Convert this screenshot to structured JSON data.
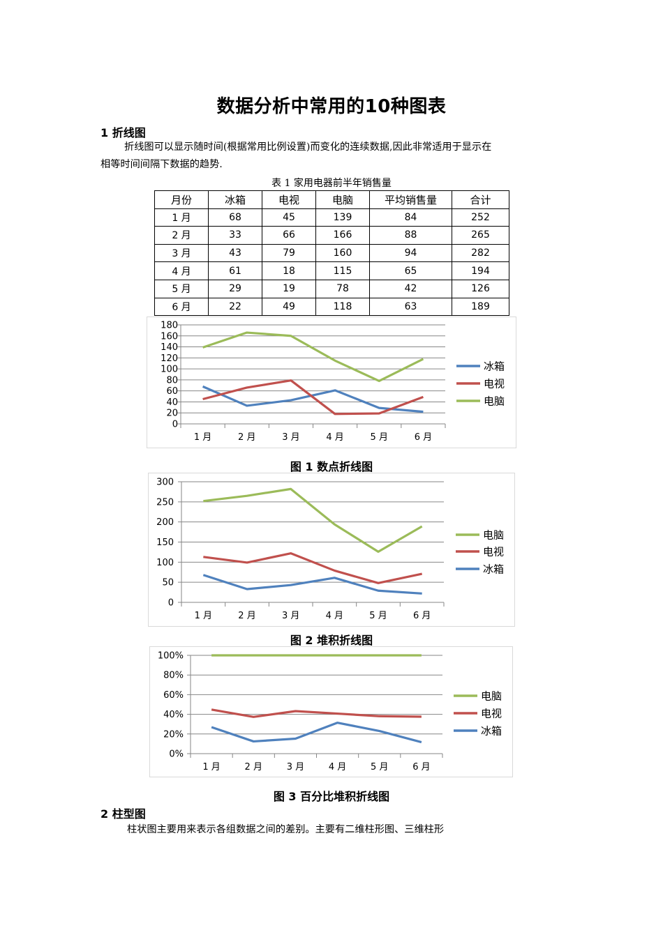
{
  "document": {
    "title": "数据分析中常用的10种图表",
    "section1": {
      "heading": "1 折线图",
      "paragraph_line1": "折线图可以显示随时间(根据常用比例设置)而变化的连续数据,因此非常适用于显示在",
      "paragraph_line2": "相等时间间隔下数据的趋势."
    },
    "table1": {
      "caption": "表 1 家用电器前半年销售量",
      "headers": [
        "月份",
        "冰箱",
        "电视",
        "电脑",
        "平均销售量",
        "合计"
      ],
      "rows": [
        [
          "1 月",
          "68",
          "45",
          "139",
          "84",
          "252"
        ],
        [
          "2 月",
          "33",
          "66",
          "166",
          "88",
          "265"
        ],
        [
          "3 月",
          "43",
          "79",
          "160",
          "94",
          "282"
        ],
        [
          "4 月",
          "61",
          "18",
          "115",
          "65",
          "194"
        ],
        [
          "5 月",
          "29",
          "19",
          "78",
          "42",
          "126"
        ],
        [
          "6 月",
          "22",
          "49",
          "118",
          "63",
          "189"
        ]
      ]
    },
    "figure1_caption": "图 1  数点折线图",
    "figure2_caption": "图 2 堆积折线图",
    "figure3_caption": "图 3 百分比堆积折线图",
    "section2": {
      "heading": "2 柱型图",
      "paragraph_line1": "柱状图主要用来表示各组数据之间的差别。主要有二维柱形图、三维柱形"
    }
  },
  "colors": {
    "fridge": "#4F81BD",
    "tv": "#C0504D",
    "computer": "#9BBB59",
    "gridline": "#868686",
    "frame": "#d9d9d9"
  },
  "chart_data": [
    {
      "type": "line",
      "title": "图 1 数点折线图",
      "categories": [
        "1月",
        "2月",
        "3月",
        "4月",
        "5月",
        "6月"
      ],
      "series": [
        {
          "name": "冰箱",
          "values": [
            68,
            33,
            43,
            61,
            29,
            22
          ],
          "color": "#4F81BD"
        },
        {
          "name": "电视",
          "values": [
            45,
            66,
            79,
            18,
            19,
            49
          ],
          "color": "#C0504D"
        },
        {
          "name": "电脑",
          "values": [
            139,
            166,
            160,
            115,
            78,
            118
          ],
          "color": "#9BBB59"
        }
      ],
      "legend": [
        "冰箱",
        "电视",
        "电脑"
      ],
      "legend_position": "right",
      "yticks": [
        "0",
        "20",
        "40",
        "60",
        "80",
        "100",
        "120",
        "140",
        "160",
        "180"
      ],
      "ylim": [
        0,
        180
      ],
      "grid": true,
      "xlabel": "",
      "ylabel": ""
    },
    {
      "type": "line",
      "stacked": true,
      "title": "图 2 堆积折线图",
      "categories": [
        "1月",
        "2月",
        "3月",
        "4月",
        "5月",
        "6月"
      ],
      "series": [
        {
          "name": "冰箱",
          "values": [
            68,
            33,
            43,
            61,
            29,
            22
          ],
          "color": "#4F81BD"
        },
        {
          "name": "电视",
          "values": [
            45,
            66,
            79,
            18,
            19,
            49
          ],
          "color": "#C0504D"
        },
        {
          "name": "电脑",
          "values": [
            139,
            166,
            160,
            115,
            78,
            118
          ],
          "color": "#9BBB59"
        }
      ],
      "plotted_cumulative": {
        "冰箱": [
          68,
          33,
          43,
          61,
          29,
          22
        ],
        "电视": [
          113,
          99,
          122,
          79,
          48,
          71
        ],
        "电脑": [
          252,
          265,
          282,
          194,
          126,
          189
        ]
      },
      "legend": [
        "电脑",
        "电视",
        "冰箱"
      ],
      "legend_position": "right",
      "yticks": [
        "0",
        "50",
        "100",
        "150",
        "200",
        "250",
        "300"
      ],
      "ylim": [
        0,
        300
      ],
      "grid": true,
      "xlabel": "",
      "ylabel": ""
    },
    {
      "type": "line",
      "stacked": "percent",
      "title": "图 3 百分比堆积折线图",
      "categories": [
        "1月",
        "2月",
        "3月",
        "4月",
        "5月",
        "6月"
      ],
      "series": [
        {
          "name": "冰箱",
          "values": [
            68,
            33,
            43,
            61,
            29,
            22
          ],
          "color": "#4F81BD"
        },
        {
          "name": "电视",
          "values": [
            45,
            66,
            79,
            18,
            19,
            49
          ],
          "color": "#C0504D"
        },
        {
          "name": "电脑",
          "values": [
            139,
            166,
            160,
            115,
            78,
            118
          ],
          "color": "#9BBB59"
        }
      ],
      "plotted_cumulative_percent": {
        "冰箱": [
          27.0,
          12.5,
          15.2,
          31.4,
          23.0,
          11.6
        ],
        "电视": [
          44.8,
          37.4,
          43.3,
          40.7,
          38.1,
          37.6
        ],
        "电脑": [
          100,
          100,
          100,
          100,
          100,
          100
        ]
      },
      "legend": [
        "电脑",
        "电视",
        "冰箱"
      ],
      "legend_position": "right",
      "yticks": [
        "0%",
        "20%",
        "40%",
        "60%",
        "80%",
        "100%"
      ],
      "ylim": [
        0,
        100
      ],
      "grid": true,
      "xlabel": "",
      "ylabel": ""
    }
  ]
}
